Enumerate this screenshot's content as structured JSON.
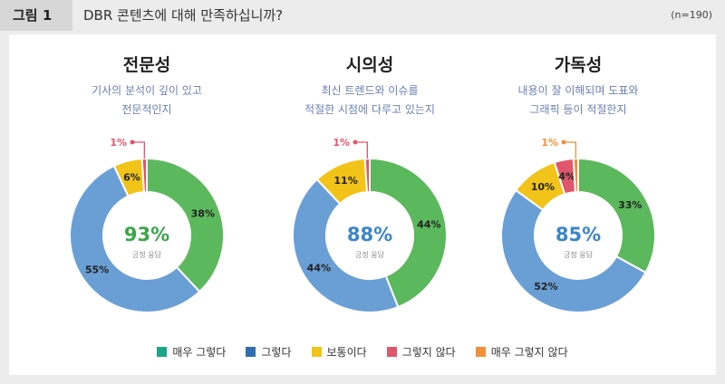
{
  "header": {
    "figure_label": "그림 1",
    "title": "DBR 콘텐츠에 대해 만족하십니까?",
    "sample": "(n=190)"
  },
  "colors": {
    "매우 그렇다": "#5cb85c",
    "그렇다": "#6a9fd6",
    "보통이다": "#f2c318",
    "그렇지 않다": "#e0566a",
    "매우 그렇지 않다": "#f0913a",
    "legend_매우 그렇다": "#1aa58a",
    "legend_그렇다": "#2f6fb0"
  },
  "chart_data": [
    {
      "type": "pie",
      "title": "전문성",
      "subtitle": [
        "기사의 분석이 깊이 있고",
        "전문적인지"
      ],
      "center_value": "93%",
      "center_label": "긍정 응답",
      "center_color": "#3aa64a",
      "slices": [
        {
          "name": "매우 그렇다",
          "value": 38,
          "label": "38%"
        },
        {
          "name": "그렇다",
          "value": 55,
          "label": "55%"
        },
        {
          "name": "보통이다",
          "value": 6,
          "label": "6%"
        },
        {
          "name": "그렇지 않다",
          "value": 1,
          "label": "1%",
          "callout": true
        }
      ]
    },
    {
      "type": "pie",
      "title": "시의성",
      "subtitle": [
        "최신 트렌드와 이슈를",
        "적절한 시점에 다루고 있는지"
      ],
      "center_value": "88%",
      "center_label": "긍정 응답",
      "center_color": "#3a86c8",
      "slices": [
        {
          "name": "매우 그렇다",
          "value": 44,
          "label": "44%"
        },
        {
          "name": "그렇다",
          "value": 44,
          "label": "44%"
        },
        {
          "name": "보통이다",
          "value": 11,
          "label": "11%"
        },
        {
          "name": "그렇지 않다",
          "value": 1,
          "label": "1%",
          "callout": true
        }
      ]
    },
    {
      "type": "pie",
      "title": "가독성",
      "subtitle": [
        "내용이 잘 이해되며 도표와",
        "그래픽 등이 적절한지"
      ],
      "center_value": "85%",
      "center_label": "긍정 응답",
      "center_color": "#3a86c8",
      "slices": [
        {
          "name": "매우 그렇다",
          "value": 33,
          "label": "33%"
        },
        {
          "name": "그렇다",
          "value": 52,
          "label": "52%"
        },
        {
          "name": "보통이다",
          "value": 10,
          "label": "10%"
        },
        {
          "name": "그렇지 않다",
          "value": 4,
          "label": "4%"
        },
        {
          "name": "매우 그렇지 않다",
          "value": 1,
          "label": "1%",
          "callout": true
        }
      ]
    }
  ],
  "legend": [
    "매우 그렇다",
    "그렇다",
    "보통이다",
    "그렇지 않다",
    "매우 그렇지 않다"
  ]
}
